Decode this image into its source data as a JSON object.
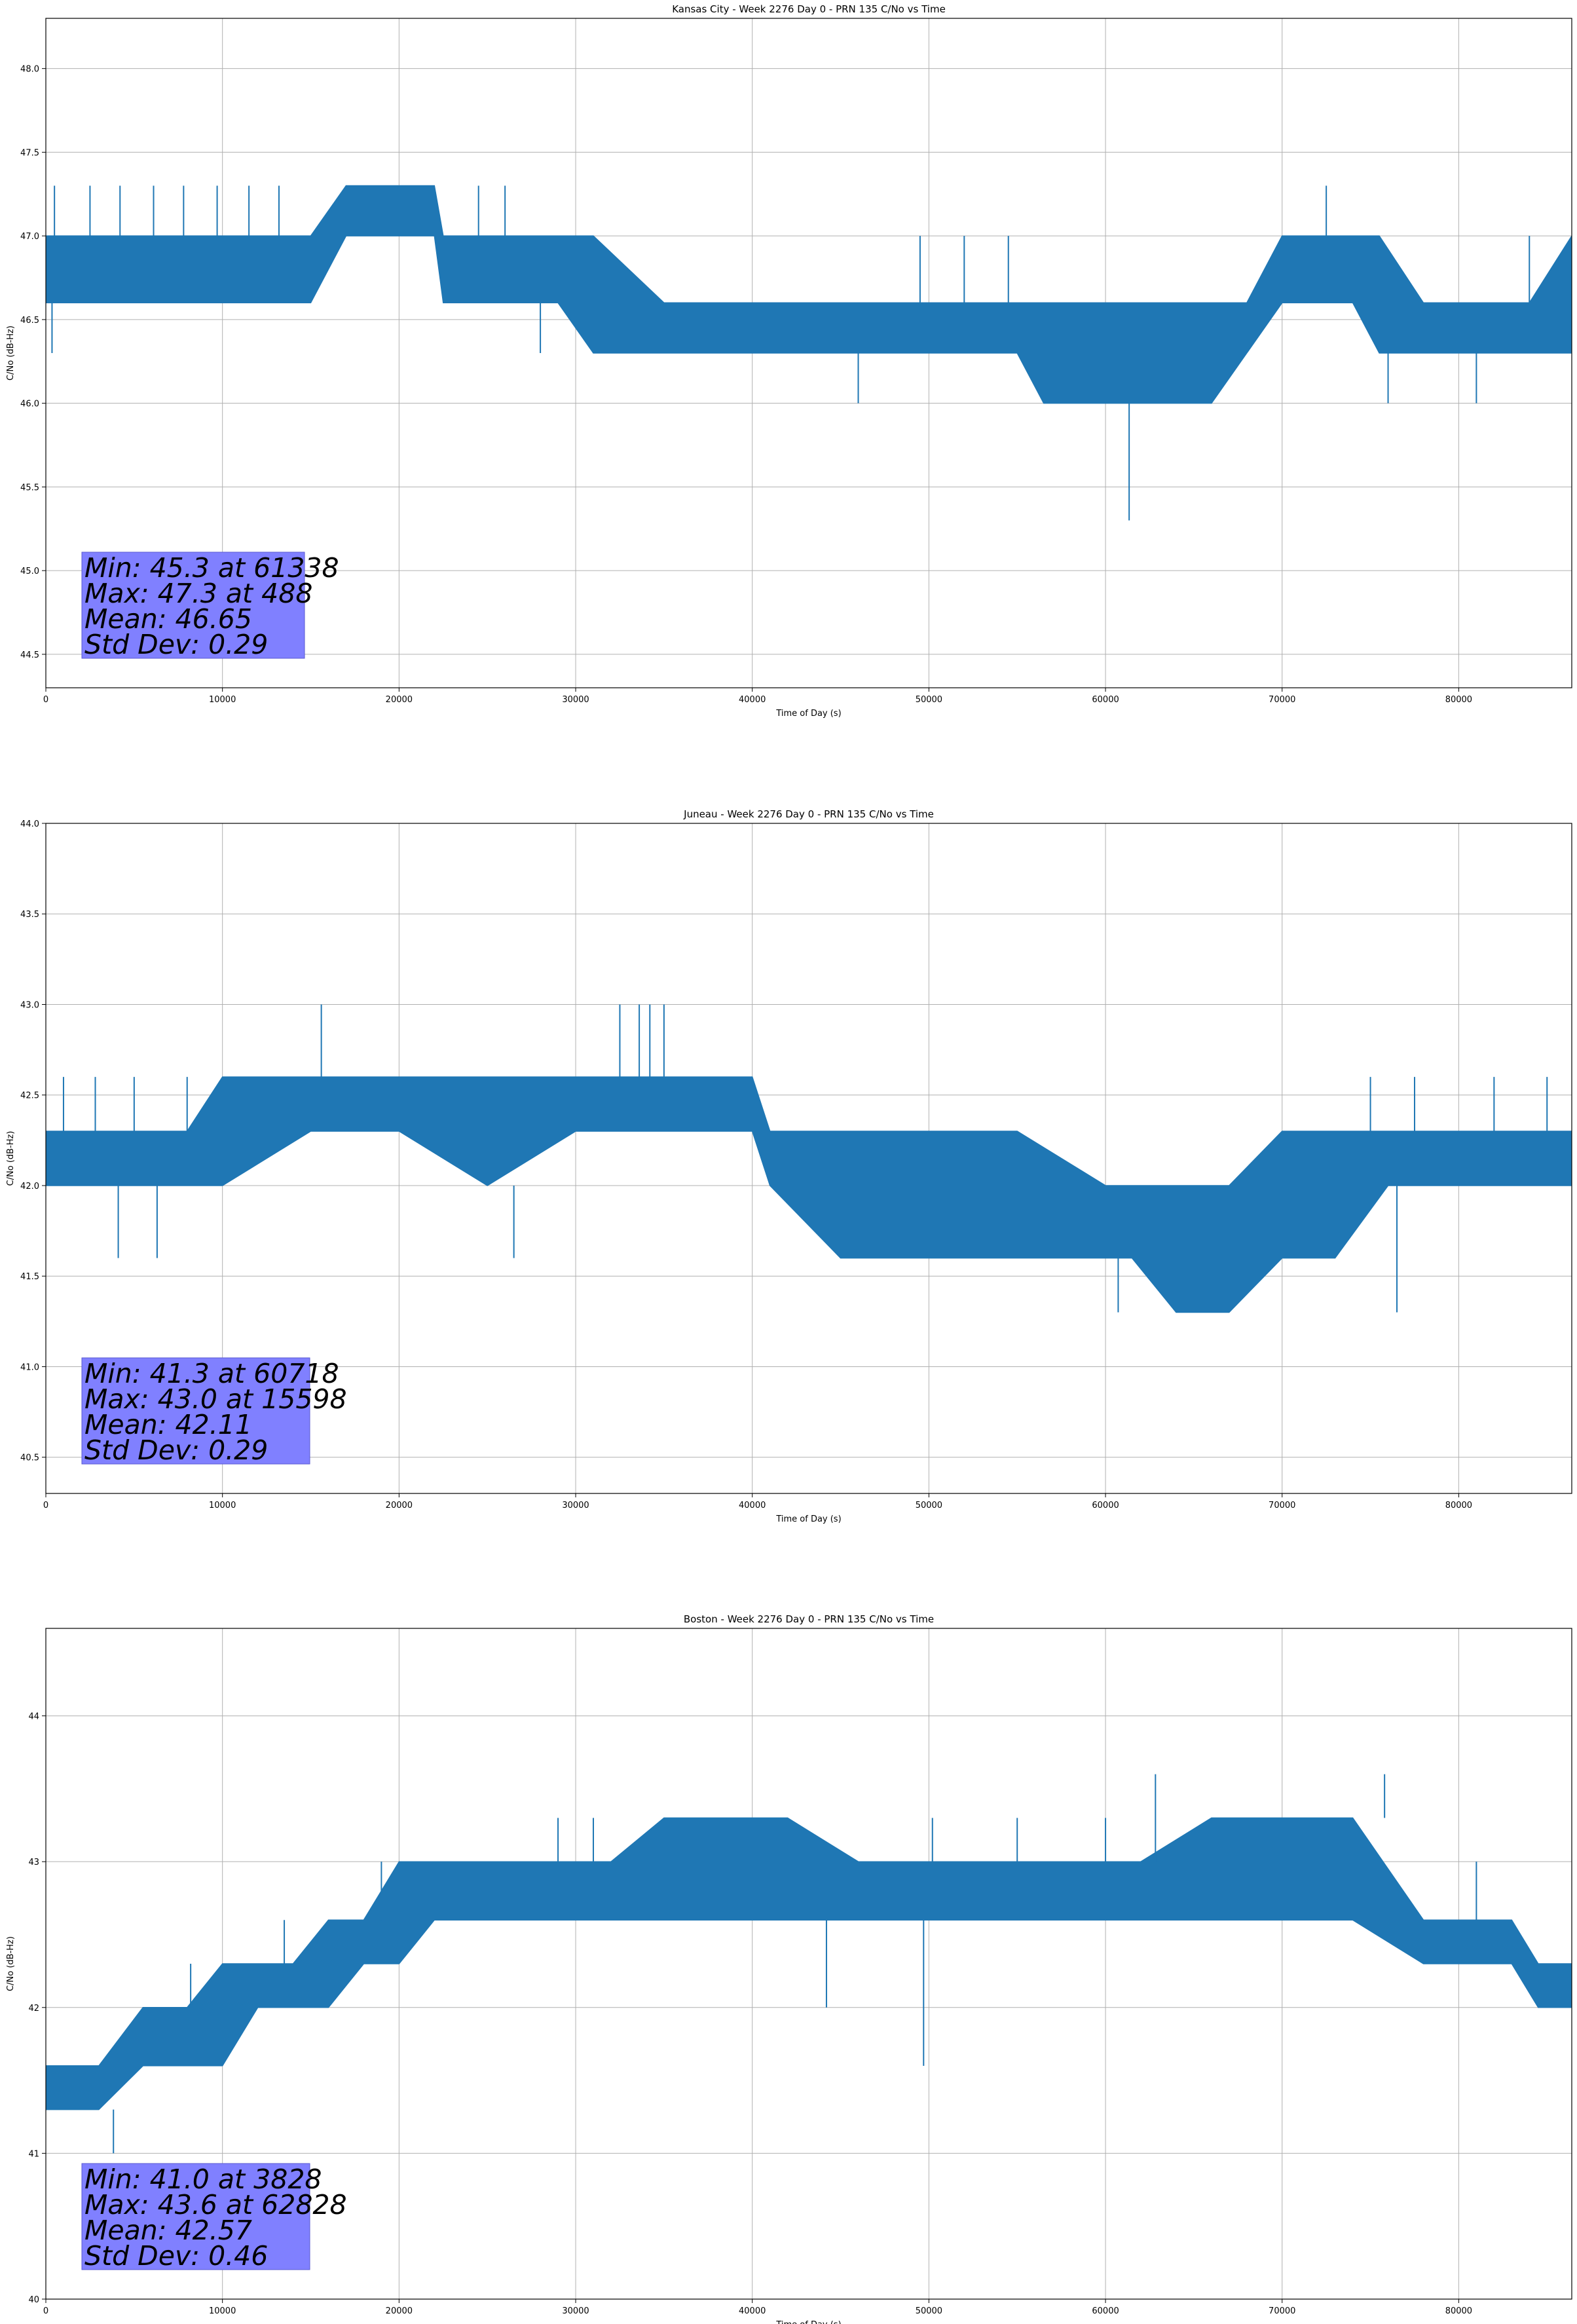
{
  "chart_data": [
    {
      "type": "line",
      "title": "Kansas City - Week 2276 Day 0 - PRN 135 C/No vs Time",
      "xlabel": "Time of Day (s)",
      "ylabel": "C/No (dB-Hz)",
      "xlim": [
        0,
        86400
      ],
      "ylim": [
        44.3,
        48.3
      ],
      "xticks": [
        0,
        10000,
        20000,
        30000,
        40000,
        50000,
        60000,
        70000,
        80000
      ],
      "yticks": [
        44.5,
        45.0,
        45.5,
        46.0,
        46.5,
        47.0,
        47.5,
        48.0
      ],
      "ytick_labels": [
        "44.5",
        "45.0",
        "45.5",
        "46.0",
        "46.5",
        "47.0",
        "47.5",
        "48.0"
      ],
      "grid": true,
      "series_color": "#1f77b4",
      "box_color": "#8080ff",
      "stats": [
        "Min: 45.3 at 61338",
        "Max: 47.3 at 488",
        "Mean: 46.65",
        "Std Dev: 0.29"
      ],
      "series": [
        {
          "x": [
            0,
            2000,
            6000,
            10000,
            14500,
            15000,
            17000,
            20000,
            22000,
            22500,
            26000,
            29000,
            31000,
            35000,
            39000,
            43000,
            47000,
            51000,
            55000,
            56500,
            58000,
            60000,
            62000,
            64000,
            66000,
            68000,
            70000,
            72000,
            74000,
            75500,
            78000,
            80000,
            84000,
            86400
          ],
          "low": [
            46.6,
            46.6,
            46.6,
            46.6,
            46.6,
            46.6,
            47.0,
            47.0,
            47.0,
            46.6,
            46.6,
            46.6,
            46.3,
            46.3,
            46.3,
            46.3,
            46.3,
            46.3,
            46.3,
            46.0,
            46.0,
            46.0,
            46.0,
            46.0,
            46.0,
            46.3,
            46.6,
            46.6,
            46.6,
            46.3,
            46.3,
            46.3,
            46.3,
            46.3
          ],
          "high": [
            47.0,
            47.0,
            47.0,
            47.0,
            47.0,
            47.0,
            47.3,
            47.3,
            47.3,
            47.0,
            47.0,
            47.0,
            47.0,
            46.6,
            46.6,
            46.6,
            46.6,
            46.6,
            46.6,
            46.6,
            46.6,
            46.6,
            46.6,
            46.6,
            46.6,
            46.6,
            47.0,
            47.0,
            47.0,
            47.0,
            46.6,
            46.6,
            46.6,
            47.0
          ]
        }
      ],
      "spikes": [
        [
          488,
          47.3
        ],
        [
          2500,
          47.3
        ],
        [
          4200,
          47.3
        ],
        [
          6100,
          47.3
        ],
        [
          7800,
          47.3
        ],
        [
          9700,
          47.3
        ],
        [
          11500,
          47.3
        ],
        [
          13200,
          47.3
        ],
        [
          350,
          46.3
        ],
        [
          28000,
          46.3
        ],
        [
          24500,
          47.3
        ],
        [
          26000,
          47.3
        ],
        [
          46000,
          46.0
        ],
        [
          49500,
          47.0
        ],
        [
          52000,
          47.0
        ],
        [
          54500,
          47.0
        ],
        [
          61338,
          45.3
        ],
        [
          64500,
          46.0
        ],
        [
          72500,
          47.3
        ],
        [
          76000,
          46.0
        ],
        [
          81000,
          46.0
        ],
        [
          84000,
          47.0
        ]
      ]
    },
    {
      "type": "line",
      "title": "Juneau - Week 2276 Day 0 - PRN 135 C/No vs Time",
      "xlabel": "Time of Day (s)",
      "ylabel": "C/No (dB-Hz)",
      "xlim": [
        0,
        86400
      ],
      "ylim": [
        40.3,
        44.0
      ],
      "xticks": [
        0,
        10000,
        20000,
        30000,
        40000,
        50000,
        60000,
        70000,
        80000
      ],
      "yticks": [
        40.5,
        41.0,
        41.5,
        42.0,
        42.5,
        43.0,
        43.5,
        44.0
      ],
      "ytick_labels": [
        "40.5",
        "41.0",
        "41.5",
        "42.0",
        "42.5",
        "43.0",
        "43.5",
        "44.0"
      ],
      "grid": true,
      "series_color": "#1f77b4",
      "box_color": "#8080ff",
      "stats": [
        "Min: 41.3 at 60718",
        "Max: 43.0 at 15598",
        "Mean: 42.11",
        "Std Dev: 0.29"
      ],
      "series": [
        {
          "x": [
            0,
            4000,
            8000,
            10000,
            15000,
            20000,
            25000,
            30000,
            34000,
            36000,
            40000,
            41000,
            45000,
            50000,
            55000,
            60000,
            61500,
            64000,
            67000,
            70000,
            73000,
            76000,
            80000,
            84000,
            86400
          ],
          "low": [
            42.0,
            42.0,
            42.0,
            42.0,
            42.3,
            42.3,
            42.0,
            42.3,
            42.3,
            42.3,
            42.3,
            42.0,
            41.6,
            41.6,
            41.6,
            41.6,
            41.6,
            41.3,
            41.3,
            41.6,
            41.6,
            42.0,
            42.0,
            42.0,
            42.0
          ],
          "high": [
            42.3,
            42.3,
            42.3,
            42.6,
            42.6,
            42.6,
            42.6,
            42.6,
            42.6,
            42.6,
            42.6,
            42.3,
            42.3,
            42.3,
            42.3,
            42.0,
            42.0,
            42.0,
            42.0,
            42.3,
            42.3,
            42.3,
            42.3,
            42.3,
            42.3
          ]
        }
      ],
      "spikes": [
        [
          15598,
          43.0
        ],
        [
          4100,
          41.6
        ],
        [
          6300,
          41.6
        ],
        [
          26500,
          41.6
        ],
        [
          32500,
          43.0
        ],
        [
          33600,
          43.0
        ],
        [
          34200,
          43.0
        ],
        [
          35000,
          43.0
        ],
        [
          1000,
          42.6
        ],
        [
          2800,
          42.6
        ],
        [
          5000,
          42.6
        ],
        [
          8000,
          42.6
        ],
        [
          60718,
          41.3
        ],
        [
          76500,
          41.3
        ],
        [
          75000,
          42.6
        ],
        [
          77500,
          42.6
        ],
        [
          82000,
          42.6
        ],
        [
          85000,
          42.6
        ]
      ]
    },
    {
      "type": "line",
      "title": "Boston - Week 2276 Day 0 - PRN 135 C/No vs Time",
      "xlabel": "Time of Day (s)",
      "ylabel": "C/No (dB-Hz)",
      "xlim": [
        0,
        86400
      ],
      "ylim": [
        40.0,
        44.6
      ],
      "xticks": [
        0,
        10000,
        20000,
        30000,
        40000,
        50000,
        60000,
        70000,
        80000
      ],
      "yticks": [
        40,
        41,
        42,
        43,
        44
      ],
      "ytick_labels": [
        "40",
        "41",
        "42",
        "43",
        "44"
      ],
      "grid": true,
      "series_color": "#1f77b4",
      "box_color": "#8080ff",
      "stats": [
        "Min: 41.0 at 3828",
        "Max: 43.6 at 62828",
        "Mean: 42.57",
        "Std Dev: 0.46"
      ],
      "series": [
        {
          "x": [
            0,
            3000,
            5500,
            8000,
            10000,
            12000,
            14000,
            16000,
            18000,
            20000,
            22000,
            24000,
            28000,
            32000,
            35000,
            38000,
            42000,
            46000,
            50000,
            54000,
            58000,
            62000,
            66000,
            70000,
            74000,
            78000,
            80000,
            83000,
            84500,
            86400
          ],
          "low": [
            41.3,
            41.3,
            41.6,
            41.6,
            41.6,
            42.0,
            42.0,
            42.0,
            42.3,
            42.3,
            42.6,
            42.6,
            42.6,
            42.6,
            42.6,
            42.6,
            42.6,
            42.6,
            42.6,
            42.6,
            42.6,
            42.6,
            42.6,
            42.6,
            42.6,
            42.3,
            42.3,
            42.3,
            42.0,
            42.0
          ],
          "high": [
            41.6,
            41.6,
            42.0,
            42.0,
            42.3,
            42.3,
            42.3,
            42.6,
            42.6,
            43.0,
            43.0,
            43.0,
            43.0,
            43.0,
            43.3,
            43.3,
            43.3,
            43.0,
            43.0,
            43.0,
            43.0,
            43.0,
            43.3,
            43.3,
            43.3,
            42.6,
            42.6,
            42.6,
            42.3,
            42.3
          ]
        }
      ],
      "spikes": [
        [
          3828,
          41.0
        ],
        [
          62828,
          43.6
        ],
        [
          75800,
          43.6
        ],
        [
          49700,
          41.6
        ],
        [
          44200,
          42.0
        ],
        [
          8200,
          42.3
        ],
        [
          13500,
          42.6
        ],
        [
          19000,
          43.0
        ],
        [
          29000,
          43.3
        ],
        [
          31000,
          43.3
        ],
        [
          50200,
          43.3
        ],
        [
          55000,
          43.3
        ],
        [
          60000,
          43.3
        ],
        [
          81000,
          43.0
        ]
      ]
    }
  ]
}
